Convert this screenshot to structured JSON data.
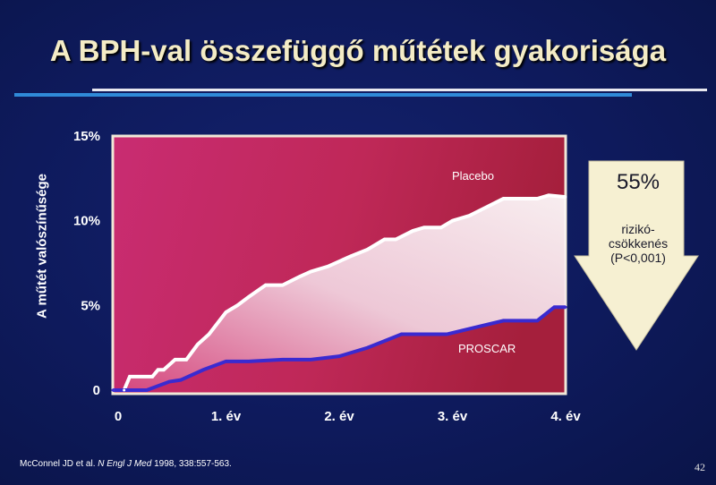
{
  "slide": {
    "title": "A BPH-val összefüggő műtétek gyakorisága",
    "page_number": "42",
    "citation": {
      "authors": "McConnel JD et al.",
      "journal": "N Engl J Med",
      "details": "1998, 338:557-563."
    }
  },
  "callout": {
    "percent": "55%",
    "label": "rizikó-\ncsökkenés\n(P<0,001)"
  },
  "colors": {
    "background": "#10205f",
    "placebo_line": "#ffffff",
    "proscar_line": "#3a2ad0",
    "plot_gradient_left": "#c52a6a",
    "plot_gradient_right": "#a8203e",
    "arrow": "#f6f0d2"
  },
  "chart_data": {
    "type": "line",
    "title": "",
    "ylabel": "A műtét valószínűsége",
    "xlabel": "",
    "xlim": [
      0,
      4
    ],
    "ylim": [
      0,
      15
    ],
    "x_ticks": [
      {
        "value": 0,
        "label": "0"
      },
      {
        "value": 1,
        "label": "1. év"
      },
      {
        "value": 2,
        "label": "2. év"
      },
      {
        "value": 3,
        "label": "3. év"
      },
      {
        "value": 4,
        "label": "4. év"
      }
    ],
    "y_ticks": [
      {
        "value": 0,
        "label": "0"
      },
      {
        "value": 5,
        "label": "5%"
      },
      {
        "value": 10,
        "label": "10%"
      },
      {
        "value": 15,
        "label": "15%"
      }
    ],
    "grid": false,
    "series": [
      {
        "name": "Placebo",
        "x": [
          0,
          0.1,
          0.15,
          0.35,
          0.4,
          0.45,
          0.55,
          0.65,
          0.75,
          0.85,
          1.0,
          1.1,
          1.2,
          1.35,
          1.5,
          1.65,
          1.75,
          1.9,
          2.1,
          2.25,
          2.4,
          2.5,
          2.65,
          2.75,
          2.9,
          3.0,
          3.15,
          3.3,
          3.45,
          3.6,
          3.75,
          3.85,
          4.0
        ],
        "values": [
          0,
          0,
          0.8,
          0.8,
          1.2,
          1.2,
          1.8,
          1.8,
          2.7,
          3.3,
          4.6,
          5.0,
          5.5,
          6.2,
          6.2,
          6.7,
          7.0,
          7.3,
          7.9,
          8.3,
          8.9,
          8.9,
          9.4,
          9.6,
          9.6,
          10.0,
          10.3,
          10.8,
          11.3,
          11.3,
          11.3,
          11.5,
          11.4
        ]
      },
      {
        "name": "PROSCAR",
        "x": [
          0,
          0.3,
          0.5,
          0.6,
          0.8,
          1.0,
          1.2,
          1.5,
          1.75,
          2.0,
          2.25,
          2.55,
          2.7,
          2.95,
          3.2,
          3.45,
          3.6,
          3.75,
          3.9,
          4.0
        ],
        "values": [
          0,
          0,
          0.5,
          0.6,
          1.2,
          1.7,
          1.7,
          1.8,
          1.8,
          2.0,
          2.5,
          3.3,
          3.3,
          3.3,
          3.7,
          4.1,
          4.1,
          4.1,
          4.9,
          4.9
        ]
      }
    ]
  }
}
